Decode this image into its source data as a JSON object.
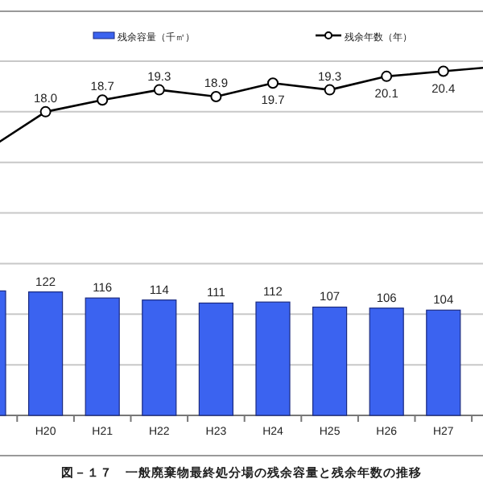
{
  "chart_data": {
    "type": "bar",
    "title": "図－１７　一般廃棄物最終処分場の残余容量と残余年数の推移",
    "categories": [
      null,
      "H20",
      "H21",
      "H22",
      "H23",
      "H24",
      "H25",
      "H26",
      "H27",
      null
    ],
    "series": [
      {
        "name": "残余容量（千㎥）",
        "color": "#3b63f0",
        "values": [
          123,
          122,
          116,
          114,
          111,
          112,
          107,
          106,
          104,
          null
        ],
        "value_labels": [
          null,
          "122",
          "116",
          "114",
          "111",
          "112",
          "107",
          "106",
          "104",
          null
        ]
      },
      {
        "name": "残余年数（年）",
        "type": "line",
        "axis": "y2",
        "color": "#000000",
        "marker": "circle",
        "values": [
          15.8,
          18.0,
          18.7,
          19.3,
          18.9,
          19.7,
          19.3,
          20.1,
          20.4,
          20.7
        ],
        "value_labels": [
          null,
          "18.0",
          "18.7",
          "19.3",
          "18.9",
          "19.7",
          "19.3",
          "20.1",
          "20.4",
          null
        ]
      }
    ],
    "ylim": [
      0,
      350
    ],
    "yticks": [
      {
        "value": 0,
        "label": null
      },
      {
        "value": 50,
        "label": null
      },
      {
        "value": 100,
        "label": null
      },
      {
        "value": 150,
        "label": null
      },
      {
        "value": 200,
        "label": null
      },
      {
        "value": 250,
        "label": null
      },
      {
        "value": 300,
        "label": null
      },
      {
        "value": 350,
        "label": null
      }
    ],
    "y2lim": [
      0,
      21
    ],
    "tick_labels": "x",
    "grid": "y",
    "legend": "top"
  }
}
